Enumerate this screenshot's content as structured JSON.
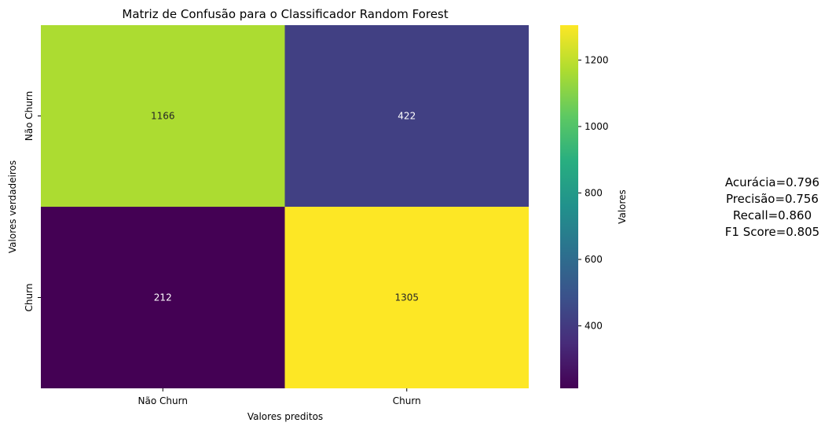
{
  "chart_data": {
    "type": "heatmap",
    "title": "Matriz de Confusão para o Classificador Random Forest",
    "xlabel": "Valores preditos",
    "ylabel": "Valores verdadeiros",
    "x_categories": [
      "Não Churn",
      "Churn"
    ],
    "y_categories": [
      "Não Churn",
      "Churn"
    ],
    "values": [
      [
        1166,
        422
      ],
      [
        212,
        1305
      ]
    ],
    "colorbar": {
      "label": "Valores",
      "colormap": "viridis",
      "range": [
        212,
        1305
      ],
      "ticks": [
        400,
        600,
        800,
        1000,
        1200
      ]
    }
  },
  "metrics": [
    "Acurácia=0.796",
    "Precisão=0.756",
    "Recall=0.860",
    "F1 Score=0.805"
  ]
}
